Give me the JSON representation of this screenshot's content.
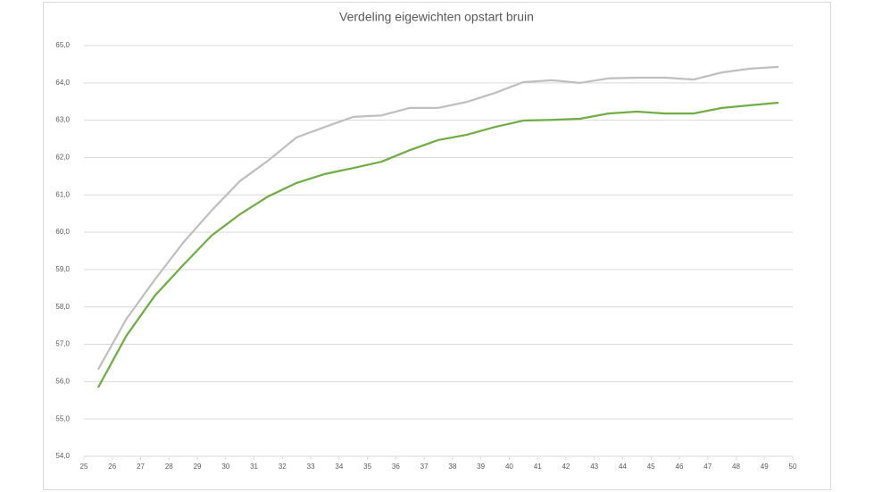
{
  "chart_data": {
    "type": "line",
    "title": "Verdeling eigewichten opstart bruin",
    "x": [
      25.5,
      26.5,
      27.5,
      28.5,
      29.5,
      30.5,
      31.5,
      32.5,
      33.5,
      34.5,
      35.5,
      36.5,
      37.5,
      38.5,
      39.5,
      40.5,
      41.5,
      42.5,
      43.5,
      44.5,
      45.5,
      46.5,
      47.5,
      48.5,
      49.5
    ],
    "series": [
      {
        "color": "#bfbfbf",
        "values": [
          56.32,
          57.68,
          58.73,
          59.72,
          60.58,
          61.37,
          61.92,
          62.54,
          62.82,
          63.09,
          63.13,
          63.33,
          63.33,
          63.49,
          63.73,
          64.02,
          64.07,
          64.0,
          64.12,
          64.14,
          64.14,
          64.09,
          64.28,
          64.38,
          64.43
        ]
      },
      {
        "color": "#70ad47",
        "values": [
          55.84,
          57.23,
          58.3,
          59.12,
          59.91,
          60.48,
          60.96,
          61.32,
          61.56,
          61.72,
          61.89,
          62.2,
          62.47,
          62.61,
          62.82,
          62.99,
          63.01,
          63.04,
          63.18,
          63.23,
          63.18,
          63.18,
          63.33,
          63.4,
          63.47
        ]
      }
    ],
    "xlim": [
      25,
      50
    ],
    "xticks": [
      25,
      26,
      27,
      28,
      29,
      30,
      31,
      32,
      33,
      34,
      35,
      36,
      37,
      38,
      39,
      40,
      41,
      42,
      43,
      44,
      45,
      46,
      47,
      48,
      49,
      50
    ],
    "ylim": [
      54,
      65
    ],
    "yticks": [
      {
        "value": 54,
        "label": "54,0"
      },
      {
        "value": 55,
        "label": "55,0"
      },
      {
        "value": 56,
        "label": "56,0"
      },
      {
        "value": 57,
        "label": "57,0"
      },
      {
        "value": 58,
        "label": "58,0"
      },
      {
        "value": 59,
        "label": "59,0"
      },
      {
        "value": 60,
        "label": "60,0"
      },
      {
        "value": 61,
        "label": "61,0"
      },
      {
        "value": 62,
        "label": "62,0"
      },
      {
        "value": 63,
        "label": "63,0"
      },
      {
        "value": 64,
        "label": "64,0"
      },
      {
        "value": 65,
        "label": "65,0"
      }
    ],
    "grid": true
  }
}
